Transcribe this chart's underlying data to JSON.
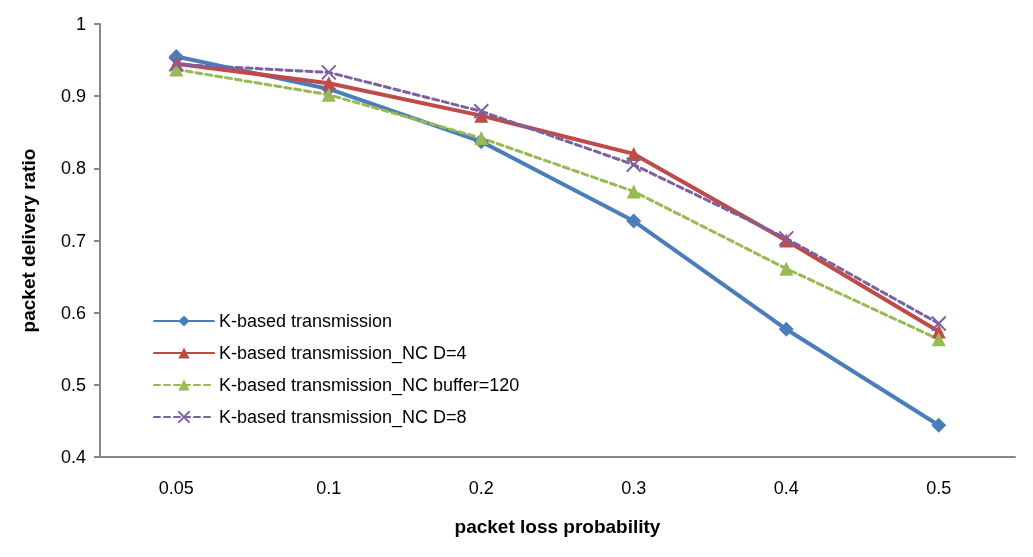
{
  "chart_data": {
    "type": "line",
    "xlabel": "packet loss probability",
    "ylabel": "packet delivery ratio",
    "categories": [
      "0.05",
      "0.1",
      "0.2",
      "0.3",
      "0.4",
      "0.5"
    ],
    "series": [
      {
        "name": "K-based transmission",
        "color": "#4a7ebb",
        "marker": "diamond",
        "line_style": "solid",
        "values": [
          0.955,
          0.91,
          0.837,
          0.727,
          0.577,
          0.444
        ]
      },
      {
        "name": "K-based transmission_NC D=4",
        "color": "#be4b48",
        "marker": "triangle",
        "line_style": "solid",
        "values": [
          0.945,
          0.918,
          0.873,
          0.82,
          0.7,
          0.574
        ]
      },
      {
        "name": "K-based transmission_NC buffer=120",
        "color": "#98b954",
        "marker": "triangle",
        "line_style": "dashed",
        "values": [
          0.937,
          0.902,
          0.842,
          0.768,
          0.661,
          0.563
        ]
      },
      {
        "name": "K-based transmission_NC D=8",
        "color": "#7d60a0",
        "marker": "cross",
        "line_style": "dashed",
        "values": [
          0.944,
          0.933,
          0.879,
          0.805,
          0.703,
          0.585
        ]
      }
    ],
    "ylim": [
      0.4,
      1
    ],
    "yticks": [
      0.4,
      0.5,
      0.6,
      0.7,
      0.8,
      0.9,
      1
    ],
    "grid": false,
    "legend": "bottom left"
  }
}
